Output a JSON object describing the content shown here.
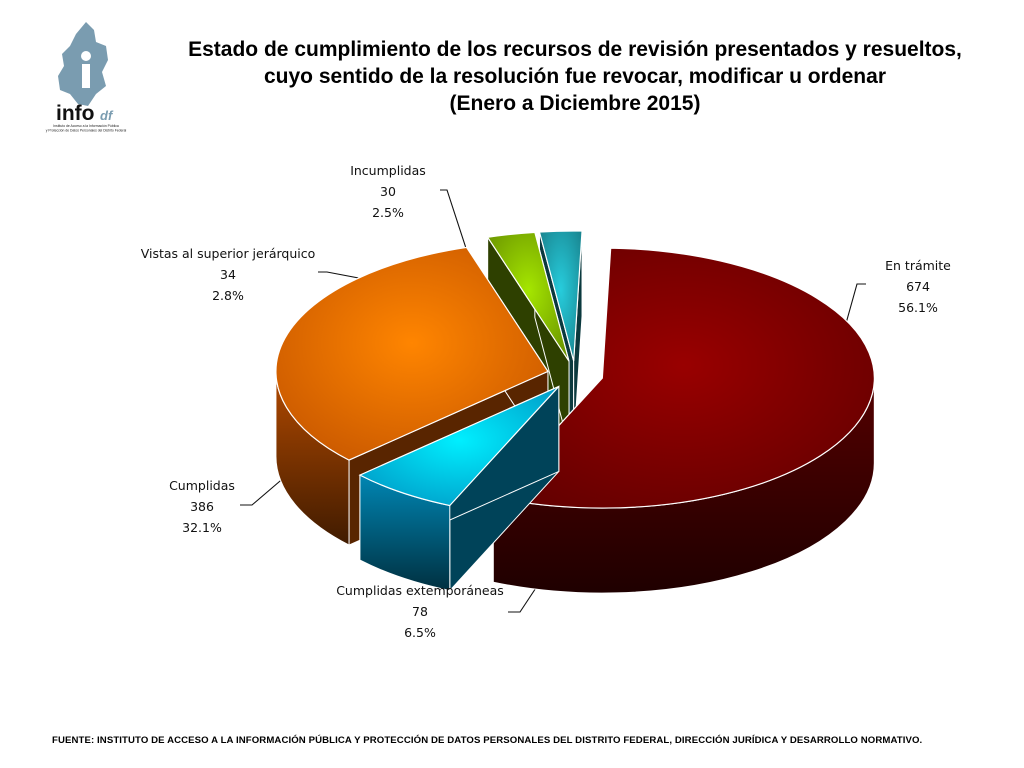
{
  "logo": {
    "name": "info df",
    "text_info": "info",
    "text_df": "df",
    "tagline_1": "Instituto de Acceso a la Información Pública",
    "tagline_2": "y Protección de Datos Personales del Distrito Federal"
  },
  "title": {
    "line1": "Estado de cumplimiento de los recursos de revisión presentados y resueltos,",
    "line2": "cuyo sentido de la resolución fue revocar, modificar u ordenar",
    "line3": "(Enero a Diciembre 2015)"
  },
  "chart_data": {
    "type": "pie",
    "style": "3d-exploded",
    "slices": [
      {
        "key": "en_tramite",
        "label": "En trámite",
        "value": 674,
        "percent": "56.1%",
        "color": "#7a0000"
      },
      {
        "key": "cumplidas_ext",
        "label": "Cumplidas extemporáneas",
        "value": 78,
        "percent": "6.5%",
        "color": "#00bfff"
      },
      {
        "key": "cumplidas",
        "label": "Cumplidas",
        "value": 386,
        "percent": "32.1%",
        "color": "#ff6a00"
      },
      {
        "key": "vistas",
        "label": "Vistas al superior jerárquico",
        "value": 34,
        "percent": "2.8%",
        "color": "#84b800"
      },
      {
        "key": "incumplidas",
        "label": "Incumplidas",
        "value": 30,
        "percent": "2.5%",
        "color": "#1fa3b0"
      }
    ]
  },
  "footer": {
    "source": "FUENTE: INSTITUTO DE ACCESO A LA INFORMACIÓN PÚBLICA Y PROTECCIÓN DE DATOS PERSONALES DEL DISTRITO FEDERAL, DIRECCIÓN JURÍDICA Y DESARROLLO NORMATIVO."
  }
}
